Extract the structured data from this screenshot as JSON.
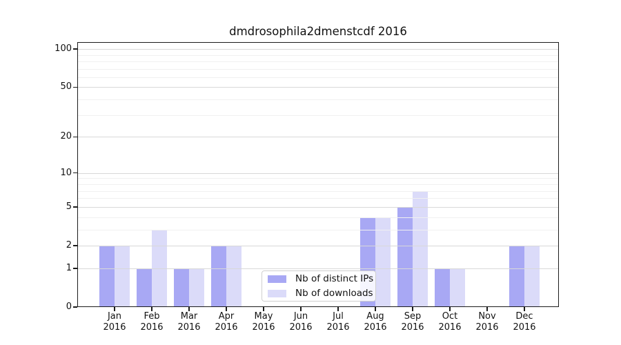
{
  "title": "dmdrosophila2dmenstcdf 2016",
  "chart_data": {
    "type": "bar",
    "title": "dmdrosophila2dmenstcdf 2016",
    "categories": [
      "Jan 2016",
      "Feb 2016",
      "Mar 2016",
      "Apr 2016",
      "May 2016",
      "Jun 2016",
      "Jul 2016",
      "Aug 2016",
      "Sep 2016",
      "Oct 2016",
      "Nov 2016",
      "Dec 2016"
    ],
    "x_tick_months": [
      "Jan",
      "Feb",
      "Mar",
      "Apr",
      "May",
      "Jun",
      "Jul",
      "Aug",
      "Sep",
      "Oct",
      "Nov",
      "Dec"
    ],
    "x_tick_year": "2016",
    "series": [
      {
        "name": "Nb of distinct IPs",
        "color": "#a8a8f4",
        "values": [
          2,
          1,
          1,
          2,
          0,
          0,
          0,
          4,
          5,
          1,
          0,
          2
        ]
      },
      {
        "name": "Nb of downloads",
        "color": "#dbdbf9",
        "values": [
          2,
          3,
          1,
          2,
          0,
          0,
          0,
          4,
          7,
          1,
          0,
          2
        ]
      }
    ],
    "xlabel": "",
    "ylabel": "",
    "yscale": "log10(value+1)",
    "ylim": [
      0,
      113
    ],
    "y_major_ticks": [
      0,
      1,
      2,
      5,
      10,
      20,
      50,
      100
    ],
    "y_minor_gridlines": [
      3,
      4,
      6,
      7,
      8,
      9,
      30,
      40,
      60,
      70,
      80,
      90
    ],
    "grid": "horizontal",
    "legend_position": "inside-lower-center",
    "colors": {
      "major_grid": "#d8d8d8",
      "minor_grid": "#f0f0f0",
      "spine": "#1a1a1a",
      "text": "#111111",
      "background": "#ffffff"
    }
  }
}
